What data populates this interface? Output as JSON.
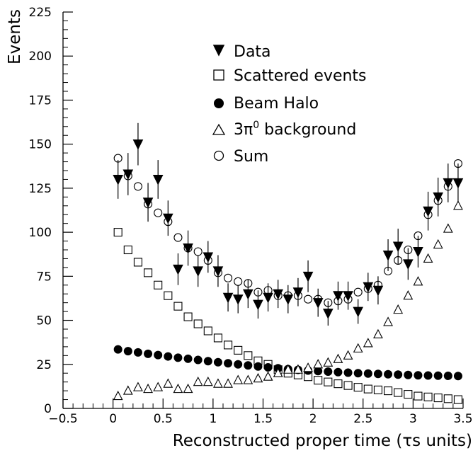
{
  "chart_data": {
    "type": "scatter",
    "title": "",
    "xlabel": "Reconstructed proper time (τs units)",
    "ylabel": "Events",
    "xlim": [
      -0.5,
      3.5
    ],
    "ylim": [
      0,
      225
    ],
    "xticks": [
      -0.5,
      0,
      0.5,
      1,
      1.5,
      2,
      2.5,
      3,
      3.5
    ],
    "xtick_labels": [
      "−0.5",
      "0",
      "0.5",
      "1",
      "1.5",
      "2",
      "2.5",
      "3",
      "3.5"
    ],
    "yticks": [
      0,
      25,
      50,
      75,
      100,
      125,
      150,
      175,
      200,
      225
    ],
    "ytick_labels": [
      "0",
      "25",
      "50",
      "75",
      "100",
      "125",
      "150",
      "175",
      "200",
      "225"
    ],
    "grid": false,
    "legend_position": "top-center",
    "x": [
      0.05,
      0.15,
      0.25,
      0.35,
      0.45,
      0.55,
      0.65,
      0.75,
      0.85,
      0.95,
      1.05,
      1.15,
      1.25,
      1.35,
      1.45,
      1.55,
      1.65,
      1.75,
      1.85,
      1.95,
      2.05,
      2.15,
      2.25,
      2.35,
      2.45,
      2.55,
      2.65,
      2.75,
      2.85,
      2.95,
      3.05,
      3.15,
      3.25,
      3.35,
      3.45
    ],
    "series": [
      {
        "name": "Data",
        "marker": "filled-down-triangle",
        "values": [
          130,
          133,
          150,
          117,
          130,
          108,
          79,
          91,
          78,
          86,
          78,
          63,
          62,
          65,
          59,
          63,
          65,
          62,
          66,
          75,
          60,
          54,
          64,
          64,
          55,
          69,
          67,
          87,
          92,
          82,
          89,
          112,
          120,
          128,
          128
        ],
        "errors": [
          11,
          12,
          12,
          11,
          11,
          10,
          9,
          10,
          9,
          9,
          9,
          8,
          8,
          8,
          8,
          8,
          8,
          8,
          8,
          9,
          8,
          7,
          8,
          8,
          7,
          8,
          8,
          9,
          10,
          9,
          9,
          11,
          11,
          11,
          11
        ]
      },
      {
        "name": "Scattered events",
        "marker": "open-square",
        "values": [
          100,
          90,
          83,
          77,
          70,
          64,
          58,
          52,
          48,
          44,
          40,
          36,
          33,
          30,
          27,
          25,
          22,
          20,
          19,
          18,
          16,
          15,
          14,
          13,
          12,
          11,
          10.5,
          10,
          9,
          8,
          7,
          6.5,
          6,
          5.5,
          5
        ]
      },
      {
        "name": "Beam Halo",
        "marker": "filled-circle",
        "values": [
          33.5,
          32.5,
          31.8,
          31,
          30.3,
          29.5,
          28.8,
          28.2,
          27.5,
          26.8,
          26.2,
          25.6,
          25,
          24.4,
          23.8,
          23.3,
          22.8,
          22.3,
          21.9,
          21.5,
          21.2,
          20.9,
          20.6,
          20.3,
          20,
          19.8,
          19.6,
          19.4,
          19.2,
          19,
          18.8,
          18.7,
          18.6,
          18.5,
          18.4
        ]
      },
      {
        "name": "3π⁰ background",
        "marker": "open-triangle",
        "values": [
          7,
          10,
          12,
          11,
          12,
          14,
          11,
          11,
          15,
          15,
          14,
          14,
          16,
          16,
          17,
          18,
          20,
          22,
          22,
          23,
          25,
          26,
          28,
          30,
          34,
          37,
          42,
          49,
          56,
          64,
          72,
          85,
          93,
          102,
          115
        ]
      },
      {
        "name": "Sum",
        "marker": "open-circle",
        "values": [
          142,
          132,
          126,
          116,
          111,
          106,
          97,
          91,
          89,
          84,
          77,
          74,
          72,
          71,
          66,
          67,
          64,
          64,
          64,
          62,
          62,
          60,
          61,
          62,
          66,
          68,
          70,
          78,
          84,
          90,
          98,
          110,
          118,
          126,
          139
        ]
      }
    ]
  },
  "legend": {
    "data_label": "Data",
    "scattered_label": "Scattered events",
    "beam_halo_label": "Beam Halo",
    "bg_label_base": "3π",
    "bg_label_sup": "0",
    "bg_label_rest": " background",
    "sum_label": "Sum"
  }
}
